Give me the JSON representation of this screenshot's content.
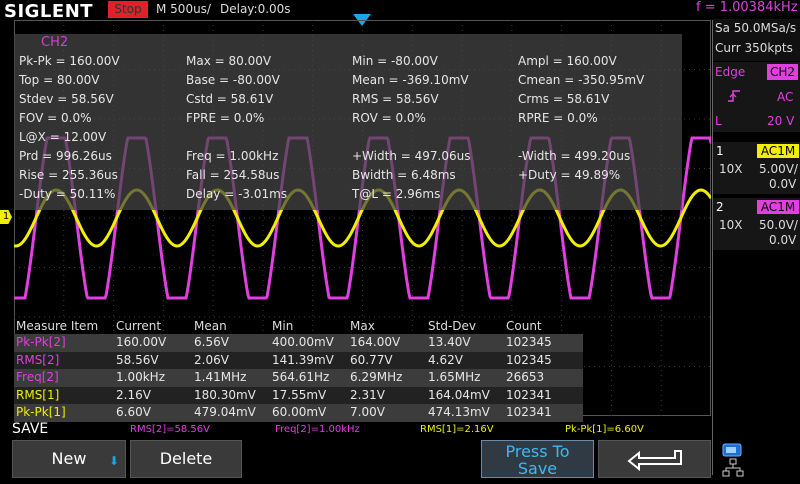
{
  "topbar": {
    "logo": "SIGLENT",
    "run_state": "Stop",
    "timebase": "M 500us/",
    "delay": "Delay:0.00s",
    "frequency_readout": "f = 1.00384kHz"
  },
  "acquisition": {
    "sample_rate": "Sa 50.0MSa/s",
    "memory_depth": "Curr 350kpts"
  },
  "trigger": {
    "mode": "Edge",
    "source": "CH2",
    "coupling": "AC",
    "sweep": "L",
    "level": "20 V"
  },
  "channel1": {
    "number": "1",
    "coupling": "AC1M",
    "probe": "10X",
    "scale": "5.00V/",
    "offset": "0.0V",
    "color": "#f0f000"
  },
  "channel2": {
    "number": "2",
    "coupling": "AC1M",
    "probe": "10X",
    "scale": "50.0V/",
    "offset": "0.0V",
    "color": "#e040e0"
  },
  "measure_all": {
    "title": "CH2",
    "rows": [
      [
        "Pk-Pk = 160.00V",
        "Max = 80.00V",
        "Min = -80.00V",
        "Ampl = 160.00V"
      ],
      [
        "Top = 80.00V",
        "Base = -80.00V",
        "Mean = -369.10mV",
        "Cmean = -350.95mV"
      ],
      [
        "Stdev = 58.56V",
        "Cstd = 58.61V",
        "RMS = 58.56V",
        "Crms = 58.61V"
      ],
      [
        "FOV = 0.0%",
        "FPRE = 0.0%",
        "ROV = 0.0%",
        "RPRE = 0.0%"
      ],
      [
        "L@X = 12.00V",
        "",
        "",
        ""
      ],
      [
        "Prd = 996.26us",
        "Freq = 1.00kHz",
        "+Width = 497.06us",
        "-Width = 499.20us"
      ],
      [
        "Rise = 255.36us",
        "Fall = 254.58us",
        "Bwidth = 6.48ms",
        "+Duty = 49.89%"
      ],
      [
        "-Duty = 50.11%",
        "Delay = -3.01ms",
        "T@L = 2.96ms",
        ""
      ]
    ]
  },
  "stats": {
    "headers": [
      "Measure Item",
      "Current",
      "Mean",
      "Min",
      "Max",
      "Std-Dev",
      "Count"
    ],
    "rows": [
      {
        "cells": [
          "Pk-Pk[2]",
          "160.00V",
          "6.56V",
          "400.00mV",
          "164.00V",
          "13.40V",
          "102345"
        ],
        "color": "#e040e0"
      },
      {
        "cells": [
          "RMS[2]",
          "58.56V",
          "2.06V",
          "141.39mV",
          "60.77V",
          "4.62V",
          "102345"
        ],
        "color": "#e040e0"
      },
      {
        "cells": [
          "Freq[2]",
          "1.00kHz",
          "1.41MHz",
          "564.61Hz",
          "6.29MHz",
          "1.65MHz",
          "26653"
        ],
        "color": "#e040e0"
      },
      {
        "cells": [
          "RMS[1]",
          "2.16V",
          "180.30mV",
          "17.55mV",
          "2.31V",
          "164.04mV",
          "102341"
        ],
        "color": "#f0f000"
      },
      {
        "cells": [
          "Pk-Pk[1]",
          "6.60V",
          "479.04mV",
          "60.00mV",
          "7.00V",
          "474.13mV",
          "102341"
        ],
        "color": "#f0f000"
      }
    ]
  },
  "bottom": {
    "menu_title": "SAVE",
    "quick_measures": [
      {
        "text": "RMS[2]=58.56V",
        "color": "#e040e0"
      },
      {
        "text": "Freq[2]=1.00kHz",
        "color": "#e040e0"
      },
      {
        "text": "RMS[1]=2.16V",
        "color": "#f0f000"
      },
      {
        "text": "Pk-Pk[1]=6.60V",
        "color": "#f0f000"
      }
    ],
    "buttons": {
      "new": "New",
      "delete": "Delete",
      "press_to_save_line1": "Press To",
      "press_to_save_line2": "Save"
    }
  },
  "markers": {
    "ch1_ground_marker": "1"
  }
}
